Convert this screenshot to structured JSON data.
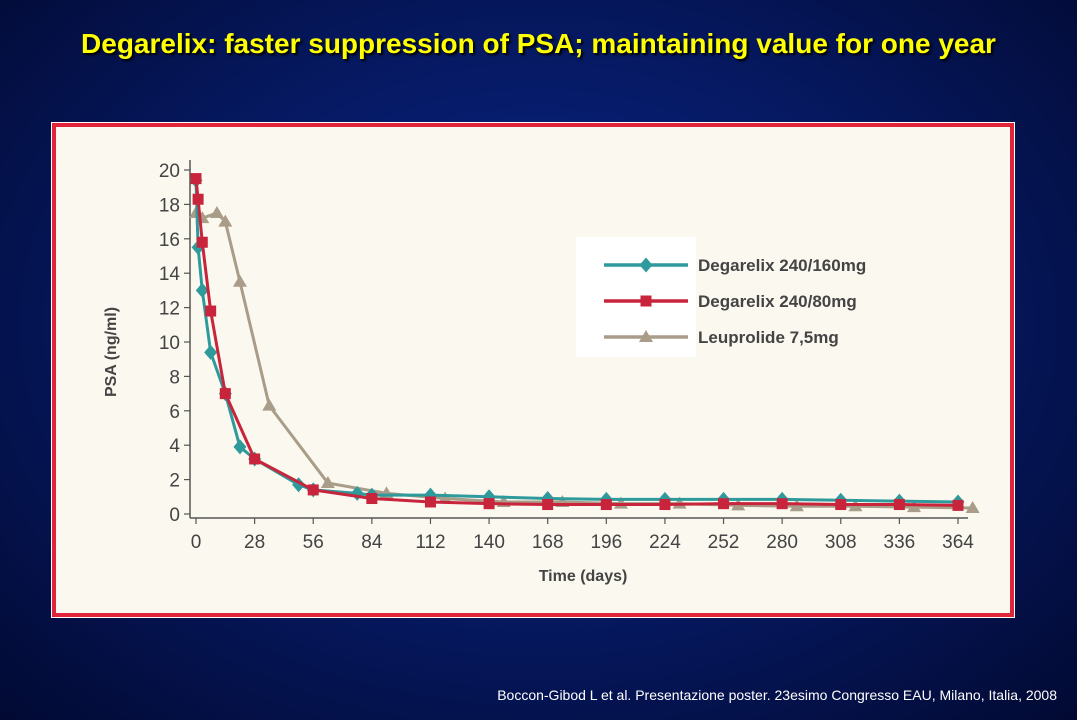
{
  "slide": {
    "title": "Degarelix: faster suppression of PSA; maintaining value for one year",
    "citation": "Boccon-Gibod L et al. Presentazione poster. 23esimo Congresso EAU, Milano, Italia, 2008"
  },
  "colors": {
    "background": "#061a66",
    "title": "#ffff00",
    "frame_border": "#e0253a",
    "plot_bg": "#fbf8ef"
  },
  "chart_data": {
    "type": "line",
    "title": "",
    "xlabel": "Time (days)",
    "ylabel": "PSA (ng/ml)",
    "xlim": [
      0,
      364
    ],
    "ylim": [
      0,
      20
    ],
    "xticks": [
      0,
      28,
      56,
      84,
      112,
      140,
      168,
      196,
      224,
      252,
      280,
      308,
      336,
      364
    ],
    "yticks": [
      0,
      2,
      4,
      6,
      8,
      10,
      12,
      14,
      16,
      18,
      20
    ],
    "grid": false,
    "legend_position": "center-right",
    "series": [
      {
        "name": "Degarelix 240/160mg",
        "color": "#2e9a9c",
        "marker": "diamond",
        "x": [
          0,
          1,
          3,
          7,
          14,
          21,
          28,
          49,
          56,
          77,
          84,
          112,
          140,
          168,
          196,
          224,
          252,
          280,
          308,
          336,
          364
        ],
        "y": [
          19.4,
          15.5,
          13.0,
          9.4,
          7.0,
          3.9,
          3.2,
          1.7,
          1.4,
          1.2,
          1.1,
          1.1,
          1.0,
          0.9,
          0.85,
          0.85,
          0.85,
          0.85,
          0.8,
          0.75,
          0.7
        ]
      },
      {
        "name": "Degarelix 240/80mg",
        "color": "#c8243c",
        "marker": "square",
        "x": [
          0,
          1,
          3,
          7,
          14,
          28,
          56,
          84,
          112,
          140,
          168,
          196,
          224,
          252,
          280,
          308,
          336,
          364
        ],
        "y": [
          19.5,
          18.3,
          15.8,
          11.8,
          7.0,
          3.2,
          1.4,
          0.9,
          0.7,
          0.6,
          0.55,
          0.55,
          0.55,
          0.6,
          0.6,
          0.55,
          0.55,
          0.5
        ]
      },
      {
        "name": "Leuprolide 7,5mg",
        "color": "#a99c88",
        "marker": "triangle",
        "x": [
          0,
          3,
          10,
          14,
          21,
          35,
          63,
          91,
          119,
          147,
          175,
          203,
          231,
          259,
          287,
          315,
          343,
          371
        ],
        "y": [
          17.5,
          17.2,
          17.5,
          17.0,
          13.5,
          6.3,
          1.8,
          1.2,
          0.9,
          0.7,
          0.7,
          0.6,
          0.6,
          0.5,
          0.45,
          0.45,
          0.4,
          0.35
        ]
      }
    ]
  }
}
